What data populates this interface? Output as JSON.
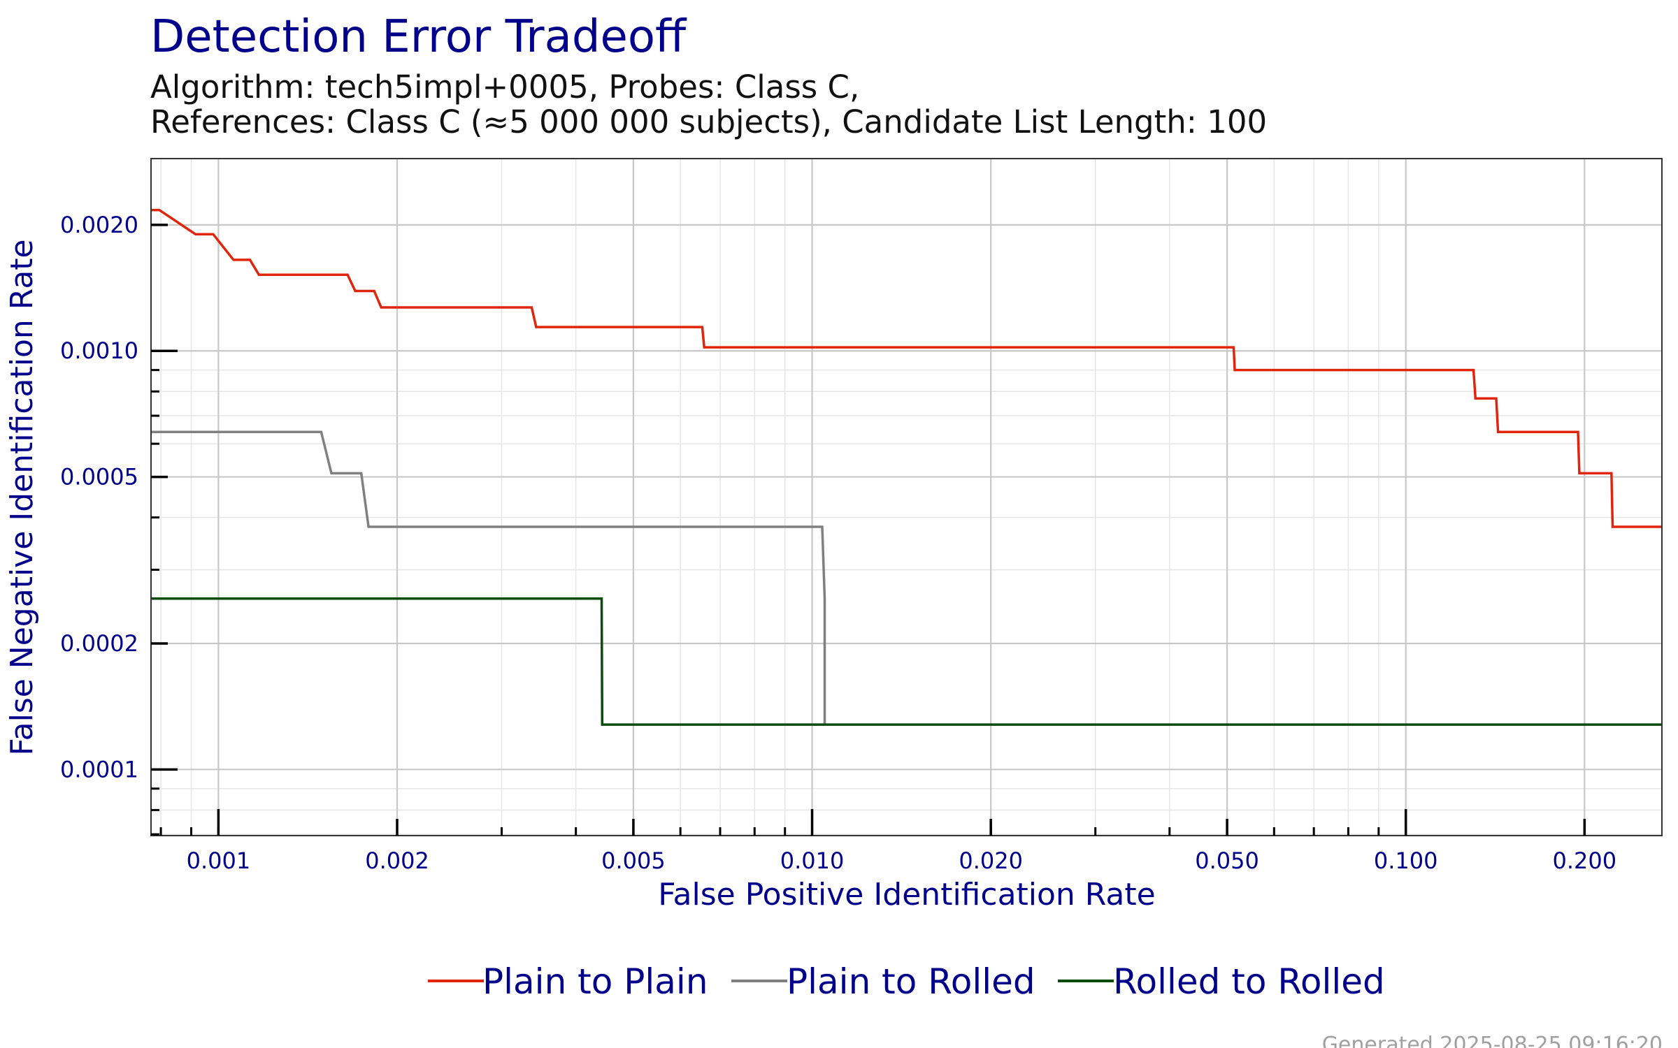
{
  "chart_data": {
    "type": "line",
    "title": "Detection Error Tradeoff",
    "subtitle_lines": [
      "Algorithm: tech5impl+0005, Probes: Class C,",
      "References: Class C (≈5 000 000 subjects), Candidate List Length: 100"
    ],
    "xlabel": "False Positive Identification Rate",
    "ylabel": "False Negative Identification Rate",
    "x_scale": "log",
    "y_scale": "log",
    "xlim": [
      0.00077,
      0.27
    ],
    "ylim": [
      6.95e-05,
      0.00288
    ],
    "x_ticks": [
      {
        "value": 0.001,
        "label": "0.001"
      },
      {
        "value": 0.002,
        "label": "0.002"
      },
      {
        "value": 0.005,
        "label": "0.005"
      },
      {
        "value": 0.01,
        "label": "0.010"
      },
      {
        "value": 0.02,
        "label": "0.020"
      },
      {
        "value": 0.05,
        "label": "0.050"
      },
      {
        "value": 0.1,
        "label": "0.100"
      },
      {
        "value": 0.2,
        "label": "0.200"
      }
    ],
    "y_ticks": [
      {
        "value": 0.0001,
        "label": "0.0001"
      },
      {
        "value": 0.0002,
        "label": "0.0002"
      },
      {
        "value": 0.0005,
        "label": "0.0005"
      },
      {
        "value": 0.001,
        "label": "0.0010"
      },
      {
        "value": 0.002,
        "label": "0.0020"
      }
    ],
    "grid": true,
    "legend_position": "bottom",
    "series": [
      {
        "name": "Plain to Plain",
        "color": "#e0250c",
        "points": [
          [
            0.00077,
            0.00217
          ],
          [
            0.000795,
            0.00217
          ],
          [
            0.000915,
            0.0019
          ],
          [
            0.00098,
            0.0019
          ],
          [
            0.00106,
            0.00165
          ],
          [
            0.00113,
            0.00165
          ],
          [
            0.00117,
            0.00152
          ],
          [
            0.00165,
            0.00152
          ],
          [
            0.0017,
            0.00139
          ],
          [
            0.00183,
            0.00139
          ],
          [
            0.00188,
            0.00127
          ],
          [
            0.00337,
            0.00127
          ],
          [
            0.00343,
            0.00114
          ],
          [
            0.00653,
            0.00114
          ],
          [
            0.00658,
            0.00102
          ],
          [
            0.0513,
            0.00102
          ],
          [
            0.0515,
            0.0009
          ],
          [
            0.13,
            0.0009
          ],
          [
            0.131,
            0.00077
          ],
          [
            0.142,
            0.00077
          ],
          [
            0.143,
            0.00064
          ],
          [
            0.195,
            0.00064
          ],
          [
            0.196,
            0.00051
          ],
          [
            0.222,
            0.00051
          ],
          [
            0.223,
            0.00038
          ],
          [
            0.27,
            0.00038
          ]
        ]
      },
      {
        "name": "Plain to Rolled",
        "color": "#808080",
        "points": [
          [
            0.00077,
            0.00064
          ],
          [
            0.00149,
            0.00064
          ],
          [
            0.00155,
            0.00051
          ],
          [
            0.00174,
            0.00051
          ],
          [
            0.00179,
            0.00038
          ],
          [
            0.0104,
            0.00038
          ],
          [
            0.0105,
            0.000256
          ],
          [
            0.0105,
            0.000128
          ]
        ]
      },
      {
        "name": "Rolled to Rolled",
        "color": "#0b4b0b",
        "points": [
          [
            0.00077,
            0.000256
          ],
          [
            0.00442,
            0.000256
          ],
          [
            0.00443,
            0.000128
          ],
          [
            0.27,
            0.000128
          ]
        ]
      }
    ]
  },
  "caption": "Generated 2025-08-25 09:16:20"
}
